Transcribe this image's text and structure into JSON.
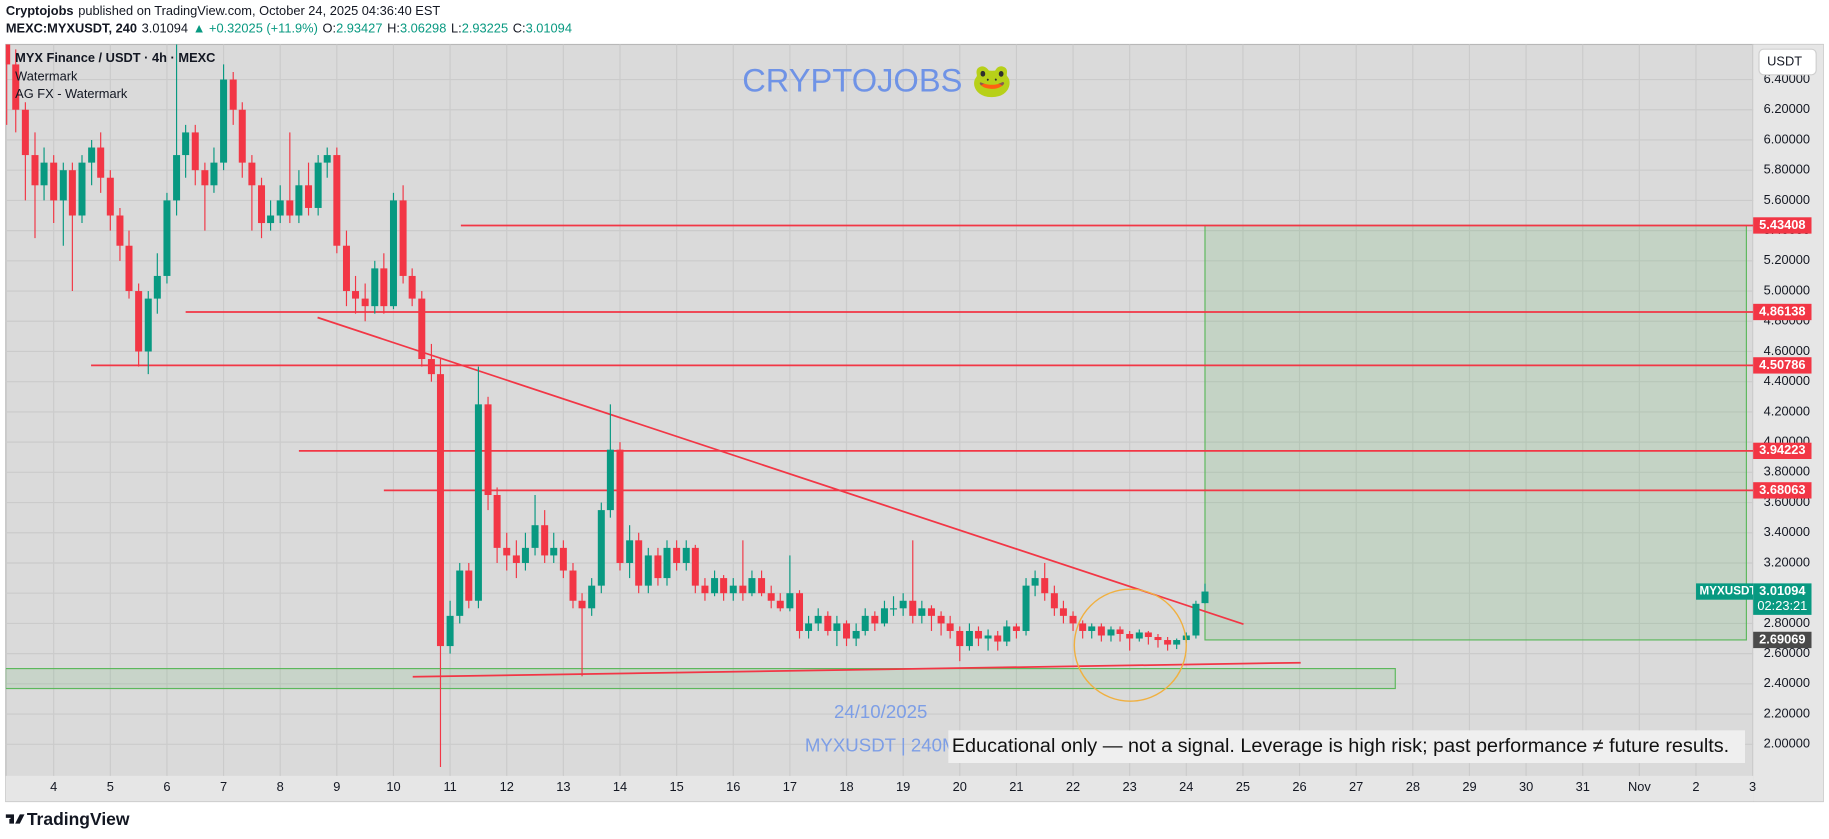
{
  "header": {
    "author": "Cryptojobs",
    "published": "published on TradingView.com, October 24, 2025 04:36:40 EST",
    "symbol": "MEXC:MYXUSDT, 240",
    "change": "▲ +0.32025 (+11.9%)",
    "ohlc_labels": [
      "O:",
      "H:",
      "L:",
      "C:"
    ]
  },
  "footer": {
    "brand": "TradingView"
  },
  "chart_data": {
    "type": "candlestick",
    "title": "MYX Finance / USDT · 4h · MEXC",
    "indicators": [
      "Watermark",
      "AG FX - Watermark"
    ],
    "watermark": "CRYPTOJOBS 🐸",
    "date_note": "24/10/2025",
    "symbol_note": "MYXUSDT | 240M",
    "disclaimer": "Educational only — not a signal. Leverage is high risk; past performance ≠ future results.",
    "currency_button": "USDT",
    "symbol_tag": "MYXUSDT",
    "countdown": "02:23:21",
    "up_color": "#089981",
    "down_color": "#f23645",
    "grid": true,
    "xlim": [
      -0.845,
      30.01
    ],
    "ylim": [
      1.791,
      6.632
    ],
    "xticks": [
      {
        "value": 0,
        "label": "4"
      },
      {
        "value": 1,
        "label": "5"
      },
      {
        "value": 2,
        "label": "6"
      },
      {
        "value": 3,
        "label": "7"
      },
      {
        "value": 4,
        "label": "8"
      },
      {
        "value": 5,
        "label": "9"
      },
      {
        "value": 6,
        "label": "10"
      },
      {
        "value": 7,
        "label": "11"
      },
      {
        "value": 8,
        "label": "12"
      },
      {
        "value": 9,
        "label": "13"
      },
      {
        "value": 10,
        "label": "14"
      },
      {
        "value": 11,
        "label": "15"
      },
      {
        "value": 12,
        "label": "16"
      },
      {
        "value": 13,
        "label": "17"
      },
      {
        "value": 14,
        "label": "18"
      },
      {
        "value": 15,
        "label": "19"
      },
      {
        "value": 16,
        "label": "20"
      },
      {
        "value": 17,
        "label": "21"
      },
      {
        "value": 18,
        "label": "22"
      },
      {
        "value": 19,
        "label": "23"
      },
      {
        "value": 20,
        "label": "24"
      },
      {
        "value": 21,
        "label": "25"
      },
      {
        "value": 22,
        "label": "26"
      },
      {
        "value": 23,
        "label": "27"
      },
      {
        "value": 24,
        "label": "28"
      },
      {
        "value": 25,
        "label": "29"
      },
      {
        "value": 26,
        "label": "30"
      },
      {
        "value": 27,
        "label": "31"
      },
      {
        "value": 28,
        "label": "Nov"
      },
      {
        "value": 29,
        "label": "2"
      },
      {
        "value": 30,
        "label": "3"
      }
    ],
    "yticks": [
      {
        "value": 2.0,
        "label": "2.00000"
      },
      {
        "value": 2.2,
        "label": "2.20000"
      },
      {
        "value": 2.4,
        "label": "2.40000"
      },
      {
        "value": 2.6,
        "label": "2.60000"
      },
      {
        "value": 2.8,
        "label": "2.80000"
      },
      {
        "value": 3.0,
        "label": "3.00000"
      },
      {
        "value": 3.2,
        "label": "3.20000"
      },
      {
        "value": 3.4,
        "label": "3.40000"
      },
      {
        "value": 3.6,
        "label": "3.60000"
      },
      {
        "value": 3.8,
        "label": "3.80000"
      },
      {
        "value": 4.0,
        "label": "4.00000"
      },
      {
        "value": 4.2,
        "label": "4.20000"
      },
      {
        "value": 4.4,
        "label": "4.40000"
      },
      {
        "value": 4.6,
        "label": "4.60000"
      },
      {
        "value": 4.8,
        "label": "4.80000"
      },
      {
        "value": 5.0,
        "label": "5.00000"
      },
      {
        "value": 5.2,
        "label": "5.20000"
      },
      {
        "value": 5.4,
        "label": "5.40000"
      },
      {
        "value": 5.6,
        "label": "5.60000"
      },
      {
        "value": 5.8,
        "label": "5.80000"
      },
      {
        "value": 6.0,
        "label": "6.00000"
      },
      {
        "value": 6.2,
        "label": "6.20000"
      },
      {
        "value": 6.4,
        "label": "6.40000"
      }
    ],
    "levels": [
      {
        "price": 5.43408,
        "from": 7.19
      },
      {
        "price": 4.86138,
        "from": 2.33
      },
      {
        "price": 4.50786,
        "from": 0.66
      },
      {
        "price": 3.94223,
        "from": 4.33
      },
      {
        "price": 3.68063,
        "from": 5.83
      }
    ],
    "trendlines": [
      {
        "x": [
          4.66,
          21.01
        ],
        "y": [
          4.825,
          2.795
        ]
      },
      {
        "x": [
          6.34,
          22.02
        ],
        "y": [
          2.447,
          2.54
        ]
      }
    ],
    "support_zone": {
      "x": [
        -0.85,
        23.69
      ],
      "y": [
        2.369,
        2.501
      ]
    },
    "target_box": {
      "x": [
        20.33,
        29.89
      ],
      "y": [
        2.69069,
        5.43408
      ]
    },
    "x": [
      -0.83,
      -0.67,
      -0.5,
      -0.33,
      -0.17,
      0,
      0.17,
      0.33,
      0.5,
      0.67,
      0.83,
      1,
      1.17,
      1.33,
      1.5,
      1.67,
      1.83,
      2,
      2.17,
      2.33,
      2.5,
      2.67,
      2.83,
      3,
      3.17,
      3.33,
      3.5,
      3.67,
      3.83,
      4,
      4.17,
      4.33,
      4.5,
      4.67,
      4.83,
      5,
      5.17,
      5.33,
      5.5,
      5.67,
      5.83,
      6,
      6.17,
      6.33,
      6.5,
      6.67,
      6.83,
      7,
      7.17,
      7.33,
      7.5,
      7.67,
      7.83,
      8,
      8.17,
      8.33,
      8.5,
      8.67,
      8.83,
      9,
      9.17,
      9.33,
      9.5,
      9.67,
      9.83,
      10,
      10.17,
      10.33,
      10.5,
      10.67,
      10.83,
      11,
      11.17,
      11.33,
      11.5,
      11.67,
      11.83,
      12,
      12.17,
      12.33,
      12.5,
      12.67,
      12.83,
      13,
      13.17,
      13.33,
      13.5,
      13.67,
      13.83,
      14,
      14.17,
      14.33,
      14.5,
      14.67,
      14.83,
      15,
      15.17,
      15.33,
      15.5,
      15.67,
      15.83,
      16,
      16.17,
      16.33,
      16.5,
      16.67,
      16.83,
      17,
      17.17,
      17.33,
      17.5,
      17.67,
      17.83,
      18,
      18.17,
      18.33,
      18.5,
      18.67,
      18.83,
      19,
      19.17,
      19.33,
      19.5,
      19.67,
      19.83,
      20,
      20.17,
      20.33
    ],
    "candles": [
      [
        6.7,
        6.8,
        6.1,
        6.5
      ],
      [
        6.5,
        6.6,
        6.05,
        6.2
      ],
      [
        6.2,
        6.25,
        5.6,
        5.9
      ],
      [
        5.9,
        6.05,
        5.35,
        5.7
      ],
      [
        5.7,
        5.95,
        5.6,
        5.85
      ],
      [
        5.85,
        5.9,
        5.45,
        5.6
      ],
      [
        5.6,
        5.85,
        5.3,
        5.8
      ],
      [
        5.8,
        5.85,
        5.0,
        5.5
      ],
      [
        5.5,
        5.9,
        5.45,
        5.85
      ],
      [
        5.85,
        6.0,
        5.7,
        5.95
      ],
      [
        5.95,
        6.05,
        5.65,
        5.75
      ],
      [
        5.75,
        5.8,
        5.4,
        5.5
      ],
      [
        5.5,
        5.55,
        5.2,
        5.3
      ],
      [
        5.3,
        5.4,
        4.95,
        5.0
      ],
      [
        5.0,
        5.05,
        4.5,
        4.6
      ],
      [
        4.6,
        5.0,
        4.45,
        4.95
      ],
      [
        4.95,
        5.25,
        4.85,
        5.1
      ],
      [
        5.1,
        5.65,
        5.05,
        5.6
      ],
      [
        5.6,
        6.65,
        5.5,
        5.9
      ],
      [
        5.9,
        6.1,
        5.75,
        6.05
      ],
      [
        6.05,
        6.1,
        5.7,
        5.8
      ],
      [
        5.8,
        5.85,
        5.4,
        5.7
      ],
      [
        5.7,
        5.95,
        5.65,
        5.85
      ],
      [
        5.85,
        6.5,
        5.8,
        6.4
      ],
      [
        6.4,
        6.45,
        6.1,
        6.2
      ],
      [
        6.2,
        6.25,
        5.75,
        5.85
      ],
      [
        5.85,
        5.9,
        5.4,
        5.7
      ],
      [
        5.7,
        5.75,
        5.35,
        5.45
      ],
      [
        5.45,
        5.6,
        5.4,
        5.5
      ],
      [
        5.5,
        5.7,
        5.45,
        5.6
      ],
      [
        5.6,
        6.05,
        5.45,
        5.5
      ],
      [
        5.5,
        5.8,
        5.45,
        5.7
      ],
      [
        5.7,
        5.85,
        5.5,
        5.55
      ],
      [
        5.55,
        5.9,
        5.5,
        5.85
      ],
      [
        5.85,
        5.95,
        5.75,
        5.9
      ],
      [
        5.9,
        5.95,
        5.25,
        5.3
      ],
      [
        5.3,
        5.4,
        4.9,
        5.0
      ],
      [
        5.0,
        5.1,
        4.85,
        4.95
      ],
      [
        4.95,
        5.05,
        4.8,
        4.9
      ],
      [
        4.9,
        5.2,
        4.85,
        5.15
      ],
      [
        5.15,
        5.25,
        4.85,
        4.9
      ],
      [
        4.9,
        5.65,
        4.88,
        5.6
      ],
      [
        5.6,
        5.7,
        5.05,
        5.1
      ],
      [
        5.1,
        5.15,
        4.9,
        4.95
      ],
      [
        4.95,
        5.0,
        4.5,
        4.55
      ],
      [
        4.55,
        4.65,
        4.4,
        4.45
      ],
      [
        4.45,
        4.55,
        1.85,
        2.65
      ],
      [
        2.65,
        2.95,
        2.6,
        2.85
      ],
      [
        2.85,
        3.2,
        2.8,
        3.15
      ],
      [
        3.15,
        3.2,
        2.9,
        2.95
      ],
      [
        2.95,
        4.5,
        2.9,
        4.25
      ],
      [
        4.25,
        4.3,
        3.55,
        3.65
      ],
      [
        3.65,
        3.7,
        3.2,
        3.3
      ],
      [
        3.3,
        3.4,
        3.15,
        3.25
      ],
      [
        3.25,
        3.35,
        3.1,
        3.2
      ],
      [
        3.2,
        3.4,
        3.15,
        3.3
      ],
      [
        3.3,
        3.65,
        3.25,
        3.45
      ],
      [
        3.45,
        3.55,
        3.2,
        3.25
      ],
      [
        3.25,
        3.4,
        3.2,
        3.3
      ],
      [
        3.3,
        3.35,
        3.1,
        3.15
      ],
      [
        3.15,
        3.2,
        2.9,
        2.95
      ],
      [
        2.95,
        3.0,
        2.45,
        2.9
      ],
      [
        2.9,
        3.1,
        2.85,
        3.05
      ],
      [
        3.05,
        3.6,
        3.0,
        3.55
      ],
      [
        3.55,
        4.25,
        3.5,
        3.95
      ],
      [
        3.95,
        4.0,
        3.15,
        3.2
      ],
      [
        3.2,
        3.45,
        3.1,
        3.35
      ],
      [
        3.35,
        3.4,
        3.0,
        3.05
      ],
      [
        3.05,
        3.3,
        3.0,
        3.25
      ],
      [
        3.25,
        3.3,
        3.05,
        3.1
      ],
      [
        3.1,
        3.35,
        3.05,
        3.3
      ],
      [
        3.3,
        3.35,
        3.15,
        3.2
      ],
      [
        3.2,
        3.35,
        3.15,
        3.3
      ],
      [
        3.3,
        3.32,
        3.0,
        3.05
      ],
      [
        3.05,
        3.1,
        2.95,
        3.0
      ],
      [
        3.0,
        3.15,
        2.98,
        3.1
      ],
      [
        3.1,
        3.12,
        2.95,
        3.0
      ],
      [
        3.0,
        3.1,
        2.95,
        3.05
      ],
      [
        3.05,
        3.35,
        2.95,
        3.0
      ],
      [
        3.0,
        3.15,
        2.98,
        3.1
      ],
      [
        3.1,
        3.15,
        2.98,
        3.0
      ],
      [
        3.0,
        3.05,
        2.9,
        2.95
      ],
      [
        2.95,
        3.0,
        2.88,
        2.9
      ],
      [
        2.9,
        3.25,
        2.88,
        3.0
      ],
      [
        3.0,
        3.02,
        2.7,
        2.75
      ],
      [
        2.75,
        2.85,
        2.7,
        2.8
      ],
      [
        2.8,
        2.9,
        2.75,
        2.85
      ],
      [
        2.85,
        2.88,
        2.72,
        2.75
      ],
      [
        2.75,
        2.85,
        2.65,
        2.8
      ],
      [
        2.8,
        2.82,
        2.65,
        2.7
      ],
      [
        2.7,
        2.8,
        2.65,
        2.75
      ],
      [
        2.75,
        2.9,
        2.72,
        2.85
      ],
      [
        2.85,
        2.88,
        2.75,
        2.8
      ],
      [
        2.8,
        2.95,
        2.78,
        2.9
      ],
      [
        2.9,
        2.98,
        2.85,
        2.9
      ],
      [
        2.9,
        3.0,
        2.85,
        2.95
      ],
      [
        2.95,
        3.35,
        2.8,
        2.85
      ],
      [
        2.85,
        2.95,
        2.8,
        2.9
      ],
      [
        2.9,
        2.92,
        2.75,
        2.85
      ],
      [
        2.85,
        2.88,
        2.72,
        2.8
      ],
      [
        2.8,
        2.85,
        2.7,
        2.75
      ],
      [
        2.75,
        2.78,
        2.55,
        2.65
      ],
      [
        2.65,
        2.8,
        2.62,
        2.75
      ],
      [
        2.75,
        2.78,
        2.65,
        2.7
      ],
      [
        2.7,
        2.76,
        2.62,
        2.72
      ],
      [
        2.72,
        2.75,
        2.62,
        2.68
      ],
      [
        2.68,
        2.82,
        2.65,
        2.78
      ],
      [
        2.78,
        2.8,
        2.7,
        2.75
      ],
      [
        2.75,
        3.1,
        2.72,
        3.05
      ],
      [
        3.05,
        3.15,
        2.98,
        3.1
      ],
      [
        3.1,
        3.2,
        2.95,
        3.0
      ],
      [
        3.0,
        3.05,
        2.85,
        2.9
      ],
      [
        2.9,
        2.95,
        2.8,
        2.85
      ],
      [
        2.85,
        2.88,
        2.75,
        2.8
      ],
      [
        2.8,
        2.82,
        2.7,
        2.75
      ],
      [
        2.75,
        2.8,
        2.7,
        2.78
      ],
      [
        2.78,
        2.8,
        2.68,
        2.72
      ],
      [
        2.72,
        2.78,
        2.68,
        2.76
      ],
      [
        2.76,
        2.78,
        2.68,
        2.73
      ],
      [
        2.73,
        2.75,
        2.62,
        2.7
      ],
      [
        2.7,
        2.76,
        2.68,
        2.74
      ],
      [
        2.74,
        2.75,
        2.66,
        2.71
      ],
      [
        2.71,
        2.73,
        2.64,
        2.69
      ],
      [
        2.69,
        2.71,
        2.62,
        2.66
      ],
      [
        2.66,
        2.7,
        2.63,
        2.69
      ],
      [
        2.69,
        2.74,
        2.67,
        2.72
      ],
      [
        2.72,
        2.95,
        2.7,
        2.93
      ],
      [
        2.93427,
        3.06298,
        2.93225,
        3.01094
      ]
    ]
  }
}
